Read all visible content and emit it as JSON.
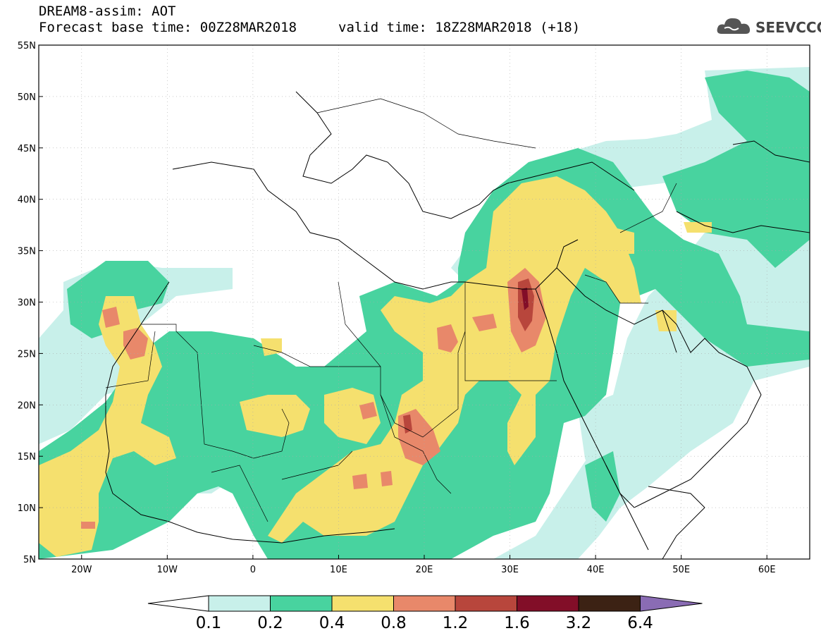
{
  "header": {
    "title_line1": "DREAM8-assim: AOT",
    "title_line2": "Forecast base time: 00Z28MAR2018",
    "valid_time": "valid time: 18Z28MAR2018 (+18)"
  },
  "logo": {
    "text": "SEEVCCC",
    "icon": "cloud-icon"
  },
  "map": {
    "projection": "lat-lon",
    "lon_range": [
      -25,
      65
    ],
    "lat_range": [
      5,
      55
    ],
    "lat_ticks": [
      "55N",
      "50N",
      "45N",
      "40N",
      "35N",
      "30N",
      "25N",
      "20N",
      "15N",
      "10N",
      "5N"
    ],
    "lon_ticks": [
      "20W",
      "10W",
      "0",
      "10E",
      "20E",
      "30E",
      "40E",
      "50E",
      "60E"
    ]
  },
  "colorbar": {
    "levels": [
      "0.1",
      "0.2",
      "0.4",
      "0.8",
      "1.2",
      "1.6",
      "3.2",
      "6.4"
    ],
    "colors": [
      "#c8f0ea",
      "#48d39f",
      "#f5e06e",
      "#e8886a",
      "#b8463c",
      "#820e28",
      "#3c2214",
      "#8a6cb4"
    ]
  }
}
